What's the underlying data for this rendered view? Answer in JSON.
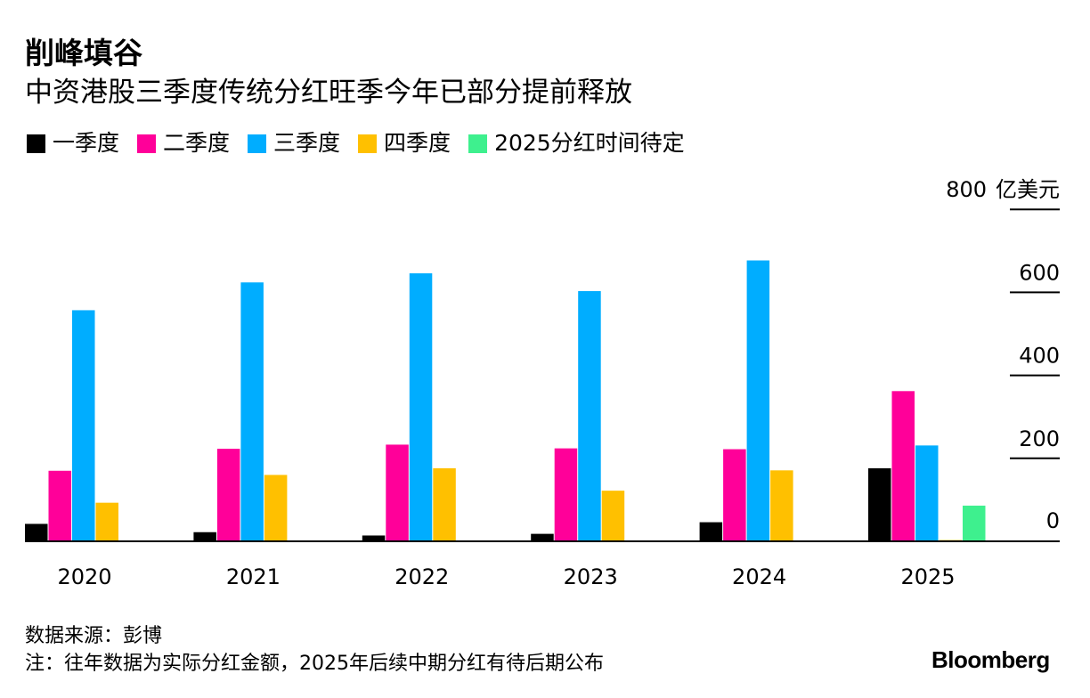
{
  "title": "削峰填谷",
  "subtitle": "中资港股三季度传统分红旺季今年已部分提前释放",
  "source": "数据来源：彭博",
  "note": "注：往年数据为实际分红金额，2025年后续中期分红有待后期公布",
  "logo_text": "Bloomberg",
  "chart_data": {
    "type": "bar",
    "y_unit": "亿美元",
    "ylim": [
      0,
      800
    ],
    "yticks": [
      {
        "value": 0,
        "label": "0"
      },
      {
        "value": 200,
        "label": "200"
      },
      {
        "value": 400,
        "label": "400"
      },
      {
        "value": 600,
        "label": "600"
      },
      {
        "value": 800,
        "label": "800"
      }
    ],
    "grid": false,
    "legend_position": "top-left",
    "categories": [
      "2020",
      "2021",
      "2022",
      "2023",
      "2024",
      "2025"
    ],
    "series": [
      {
        "name": "一季度",
        "color": "#000000",
        "values": [
          42,
          22,
          14,
          18,
          46,
          176
        ]
      },
      {
        "name": "二季度",
        "color": "#ff0099",
        "values": [
          170,
          223,
          233,
          224,
          222,
          362
        ]
      },
      {
        "name": "三季度",
        "color": "#00adff",
        "values": [
          557,
          624,
          646,
          603,
          677,
          231
        ]
      },
      {
        "name": "四季度",
        "color": "#ffc000",
        "values": [
          93,
          160,
          176,
          122,
          171,
          3
        ]
      },
      {
        "name": "2025分红时间待定",
        "color": "#3ef08e",
        "values": [
          null,
          null,
          null,
          null,
          null,
          86
        ]
      }
    ]
  }
}
